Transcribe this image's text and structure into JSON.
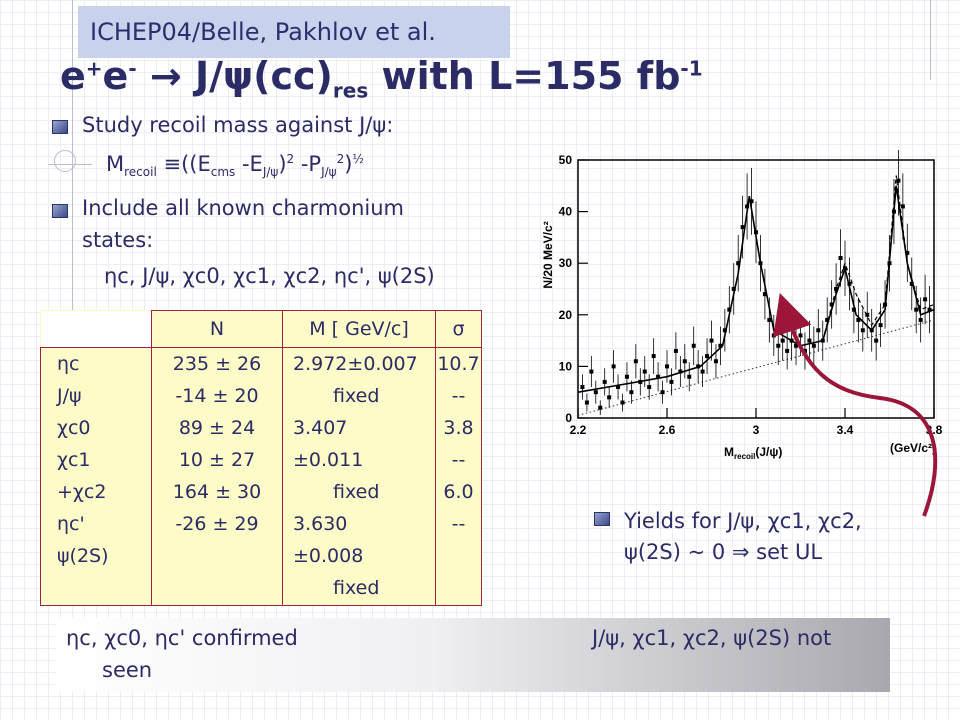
{
  "header": {
    "source_label": "ICHEP04/Belle, Pakhlov et al.",
    "title_main": "e",
    "title_plus": "+",
    "title_e2": "e",
    "title_minus": "-",
    "title_arrow": " → J/ψ(cc)",
    "title_res": "res",
    "title_tail": " with L=155 fb",
    "title_exp": "-1"
  },
  "bullets": {
    "b1": "Study recoil mass against J/ψ:",
    "formula_m": "M",
    "formula_recoil": "recoil",
    "formula_eq": " ≡((E",
    "formula_cms": "cms",
    "formula_minus_e": " -E",
    "formula_jpsi1": "J/ψ",
    "formula_close": ")",
    "formula_sq1": "2",
    "formula_minus_p": " -P",
    "formula_jpsi2": "J/ψ",
    "formula_sq2": "2",
    "formula_end": ")",
    "formula_half": "½",
    "b2_line1": "Include all known  charmonium",
    "b2_line2": "states:",
    "states": "ηc, J/ψ, χc0, χc1, χc2, ηc', ψ(2S)"
  },
  "table": {
    "headers": {
      "n": "N",
      "m": "M [ GeV/c]",
      "sigma": "σ"
    },
    "labels": [
      "ηc",
      "J/ψ",
      "χc0",
      "χc1",
      "+χc2",
      "ηc'",
      "ψ(2S)"
    ],
    "n_values": [
      "235 ± 26",
      "-14 ± 20",
      "89 ± 24",
      "10 ± 27",
      "164 ± 30",
      "-26 ± 29"
    ],
    "m_values": [
      "2.972±0.007",
      "fixed",
      "3.407",
      "±0.011",
      "fixed",
      "3.630",
      "±0.008",
      "fixed"
    ],
    "sigma_values": [
      "10.7",
      "--",
      "3.8",
      "--",
      "6.0",
      "--"
    ]
  },
  "plot_text": {
    "ylabel": "N/20 MeV/c²",
    "xlabel_m": "M",
    "xlabel_recoil": "recoil",
    "xlabel_arg": "(J/ψ)",
    "xunit": "(GeV/c²)"
  },
  "chart_data": {
    "type": "scatter",
    "xlabel": "Mrecoil(J/ψ) (GeV/c²)",
    "ylabel": "N/20 MeV/c²",
    "xlim": [
      2.2,
      3.8
    ],
    "ylim": [
      0,
      50
    ],
    "x_ticks": [
      "2.2",
      "2.6",
      "3",
      "3.4",
      "3.8"
    ],
    "y_ticks": [
      "0",
      "10",
      "20",
      "30",
      "40",
      "50"
    ],
    "points": [
      [
        2.22,
        6
      ],
      [
        2.24,
        3
      ],
      [
        2.26,
        9
      ],
      [
        2.28,
        5
      ],
      [
        2.3,
        2
      ],
      [
        2.32,
        7
      ],
      [
        2.34,
        4
      ],
      [
        2.36,
        10
      ],
      [
        2.38,
        6
      ],
      [
        2.4,
        3
      ],
      [
        2.42,
        8
      ],
      [
        2.44,
        5
      ],
      [
        2.46,
        11
      ],
      [
        2.48,
        7
      ],
      [
        2.5,
        9
      ],
      [
        2.52,
        6
      ],
      [
        2.54,
        12
      ],
      [
        2.56,
        8
      ],
      [
        2.58,
        5
      ],
      [
        2.6,
        10
      ],
      [
        2.62,
        7
      ],
      [
        2.64,
        13
      ],
      [
        2.66,
        9
      ],
      [
        2.68,
        11
      ],
      [
        2.7,
        8
      ],
      [
        2.72,
        14
      ],
      [
        2.74,
        10
      ],
      [
        2.76,
        9
      ],
      [
        2.78,
        12
      ],
      [
        2.8,
        15
      ],
      [
        2.82,
        11
      ],
      [
        2.84,
        14
      ],
      [
        2.86,
        17
      ],
      [
        2.88,
        21
      ],
      [
        2.9,
        25
      ],
      [
        2.92,
        30
      ],
      [
        2.94,
        37
      ],
      [
        2.96,
        41
      ],
      [
        2.98,
        42
      ],
      [
        3.0,
        36
      ],
      [
        3.02,
        30
      ],
      [
        3.04,
        24
      ],
      [
        3.06,
        19
      ],
      [
        3.08,
        16
      ],
      [
        3.1,
        14
      ],
      [
        3.12,
        15
      ],
      [
        3.14,
        13
      ],
      [
        3.16,
        15
      ],
      [
        3.18,
        14
      ],
      [
        3.2,
        16
      ],
      [
        3.22,
        13
      ],
      [
        3.24,
        15
      ],
      [
        3.26,
        14
      ],
      [
        3.28,
        17
      ],
      [
        3.3,
        15
      ],
      [
        3.32,
        19
      ],
      [
        3.34,
        22
      ],
      [
        3.36,
        25
      ],
      [
        3.38,
        31
      ],
      [
        3.4,
        29
      ],
      [
        3.42,
        26
      ],
      [
        3.44,
        21
      ],
      [
        3.46,
        19
      ],
      [
        3.48,
        17
      ],
      [
        3.5,
        20
      ],
      [
        3.52,
        17
      ],
      [
        3.54,
        15
      ],
      [
        3.56,
        18
      ],
      [
        3.58,
        22
      ],
      [
        3.6,
        30
      ],
      [
        3.62,
        40
      ],
      [
        3.64,
        46
      ],
      [
        3.66,
        41
      ],
      [
        3.68,
        32
      ],
      [
        3.7,
        26
      ],
      [
        3.72,
        21
      ],
      [
        3.74,
        19
      ],
      [
        3.76,
        23
      ],
      [
        3.78,
        21
      ]
    ],
    "fit_curve": [
      [
        2.2,
        5
      ],
      [
        2.4,
        6.5
      ],
      [
        2.6,
        8
      ],
      [
        2.75,
        10
      ],
      [
        2.85,
        14
      ],
      [
        2.92,
        28
      ],
      [
        2.97,
        43
      ],
      [
        3.02,
        30
      ],
      [
        3.08,
        17
      ],
      [
        3.2,
        14
      ],
      [
        3.3,
        15
      ],
      [
        3.36,
        24
      ],
      [
        3.4,
        29
      ],
      [
        3.45,
        20
      ],
      [
        3.52,
        17
      ],
      [
        3.58,
        21
      ],
      [
        3.63,
        45
      ],
      [
        3.68,
        30
      ],
      [
        3.74,
        20
      ],
      [
        3.8,
        21
      ]
    ],
    "dashed_curve": [
      [
        3.3,
        15
      ],
      [
        3.36,
        25
      ],
      [
        3.4,
        30
      ],
      [
        3.45,
        24
      ],
      [
        3.52,
        18
      ],
      [
        3.58,
        22
      ],
      [
        3.63,
        47
      ],
      [
        3.68,
        30
      ],
      [
        3.74,
        21
      ],
      [
        3.8,
        22
      ]
    ],
    "background_line": [
      [
        2.2,
        0.5
      ],
      [
        3.8,
        19
      ]
    ]
  },
  "yields": {
    "line1": "Yields for J/ψ,  χc1, χc2,",
    "line2": "ψ(2S) ~ 0 ⇒  set UL"
  },
  "conclusion": {
    "left": "ηc, χc0, ηc' confirmed",
    "right": "J/ψ, χc1, χc2, ψ(2S) not",
    "seen": "seen"
  },
  "colors": {
    "table_bg": "#fdfbc8",
    "table_border": "#a02040",
    "arrow": "#9b1638",
    "source_box": "#c8d2ec",
    "text": "#2b2b66"
  }
}
